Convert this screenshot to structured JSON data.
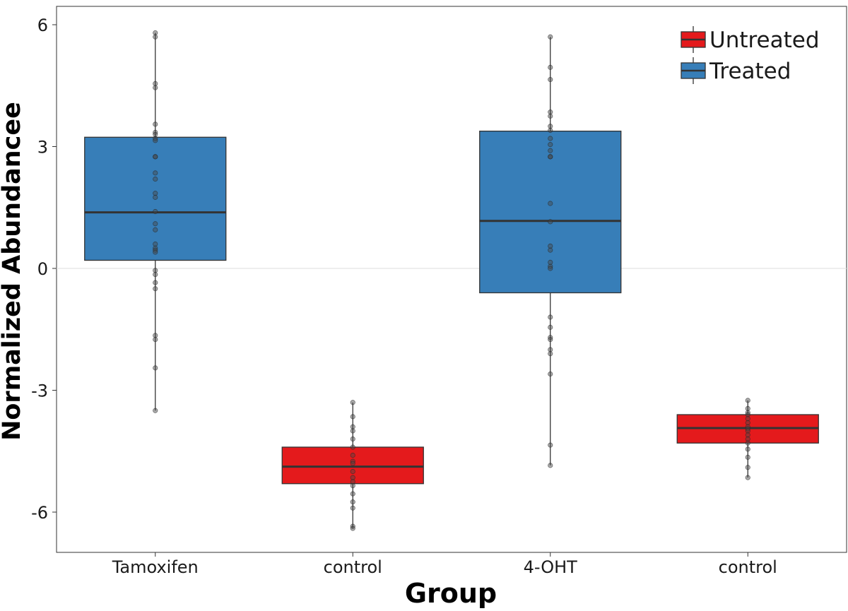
{
  "chart_data": {
    "type": "box",
    "title": "",
    "xlabel": "Group",
    "ylabel": "Normalized Abundancee",
    "ylim": [
      -7,
      6.45
    ],
    "yticks": [
      -6,
      -3,
      0,
      3,
      6
    ],
    "ytick_labels": [
      "-6",
      "-3",
      "0",
      "3",
      "6"
    ],
    "categories": [
      "Tamoxifen",
      "control",
      "4-OHT",
      "control"
    ],
    "reference_line": 0,
    "legend": {
      "position": "top-right",
      "entries": [
        {
          "label": "Untreated",
          "color": "#e41a1c"
        },
        {
          "label": "Treated",
          "color": "#377eb8"
        }
      ]
    },
    "boxes": [
      {
        "category": "Tamoxifen",
        "group": "Treated",
        "color": "#377eb8",
        "whisker_low": -3.5,
        "q1": 0.2,
        "median": 1.38,
        "q3": 3.23,
        "whisker_high": 5.8,
        "points": [
          5.8,
          5.7,
          4.55,
          4.45,
          3.55,
          3.35,
          3.3,
          3.2,
          3.15,
          2.75,
          2.75,
          2.35,
          2.2,
          1.85,
          1.75,
          1.4,
          1.1,
          0.95,
          0.6,
          0.5,
          0.45,
          0.4,
          -0.05,
          -0.15,
          -0.35,
          -0.5,
          -1.65,
          -1.75,
          -2.45,
          -3.5
        ]
      },
      {
        "category": "control",
        "group": "Untreated",
        "color": "#e41a1c",
        "whisker_low": -6.4,
        "q1": -5.3,
        "median": -4.88,
        "q3": -4.4,
        "whisker_high": -3.3,
        "points": [
          -3.3,
          -3.65,
          -3.9,
          -4.0,
          -4.2,
          -4.4,
          -4.6,
          -4.75,
          -4.8,
          -5.0,
          -5.15,
          -5.25,
          -5.35,
          -5.55,
          -5.75,
          -5.9,
          -6.35,
          -6.4
        ]
      },
      {
        "category": "4-OHT",
        "group": "Treated",
        "color": "#377eb8",
        "whisker_low": -4.85,
        "q1": -0.6,
        "median": 1.17,
        "q3": 3.38,
        "whisker_high": 5.7,
        "points": [
          5.7,
          4.95,
          4.65,
          3.85,
          3.75,
          3.5,
          3.4,
          3.2,
          3.05,
          2.9,
          2.75,
          2.75,
          1.6,
          1.15,
          0.55,
          0.45,
          0.15,
          0.05,
          0.0,
          -1.2,
          -1.45,
          -1.7,
          -1.75,
          -2.0,
          -2.1,
          -2.6,
          -4.35,
          -4.85
        ]
      },
      {
        "category": "control",
        "group": "Untreated",
        "color": "#e41a1c",
        "whisker_low": -5.15,
        "q1": -4.3,
        "median": -3.93,
        "q3": -3.6,
        "whisker_high": -3.25,
        "points": [
          -3.25,
          -3.45,
          -3.55,
          -3.6,
          -3.7,
          -3.8,
          -3.9,
          -3.95,
          -4.0,
          -4.1,
          -4.2,
          -4.3,
          -4.45,
          -4.65,
          -4.9,
          -5.15
        ]
      }
    ]
  }
}
